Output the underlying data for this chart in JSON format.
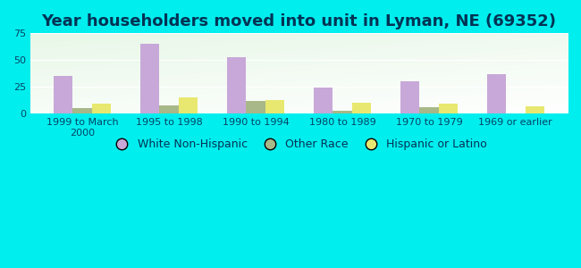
{
  "title": "Year householders moved into unit in Lyman, NE (69352)",
  "categories": [
    "1999 to March\n2000",
    "1995 to 1998",
    "1990 to 1994",
    "1980 to 1989",
    "1970 to 1979",
    "1969 or earlier"
  ],
  "series": {
    "White Non-Hispanic": [
      35,
      65,
      53,
      24,
      30,
      37
    ],
    "Other Race": [
      5,
      8,
      12,
      3,
      6,
      0
    ],
    "Hispanic or Latino": [
      9,
      15,
      13,
      10,
      9,
      7
    ]
  },
  "colors": {
    "White Non-Hispanic": "#c8a8d8",
    "Other Race": "#a8b888",
    "Hispanic or Latino": "#e8e870"
  },
  "ylim": [
    0,
    75
  ],
  "yticks": [
    0,
    25,
    50,
    75
  ],
  "background_outer": "#00eeee",
  "title_fontsize": 13,
  "title_color": "#003355",
  "legend_fontsize": 9,
  "bar_width": 0.22,
  "grid_color": "#cccccc",
  "tick_color": "#004466"
}
